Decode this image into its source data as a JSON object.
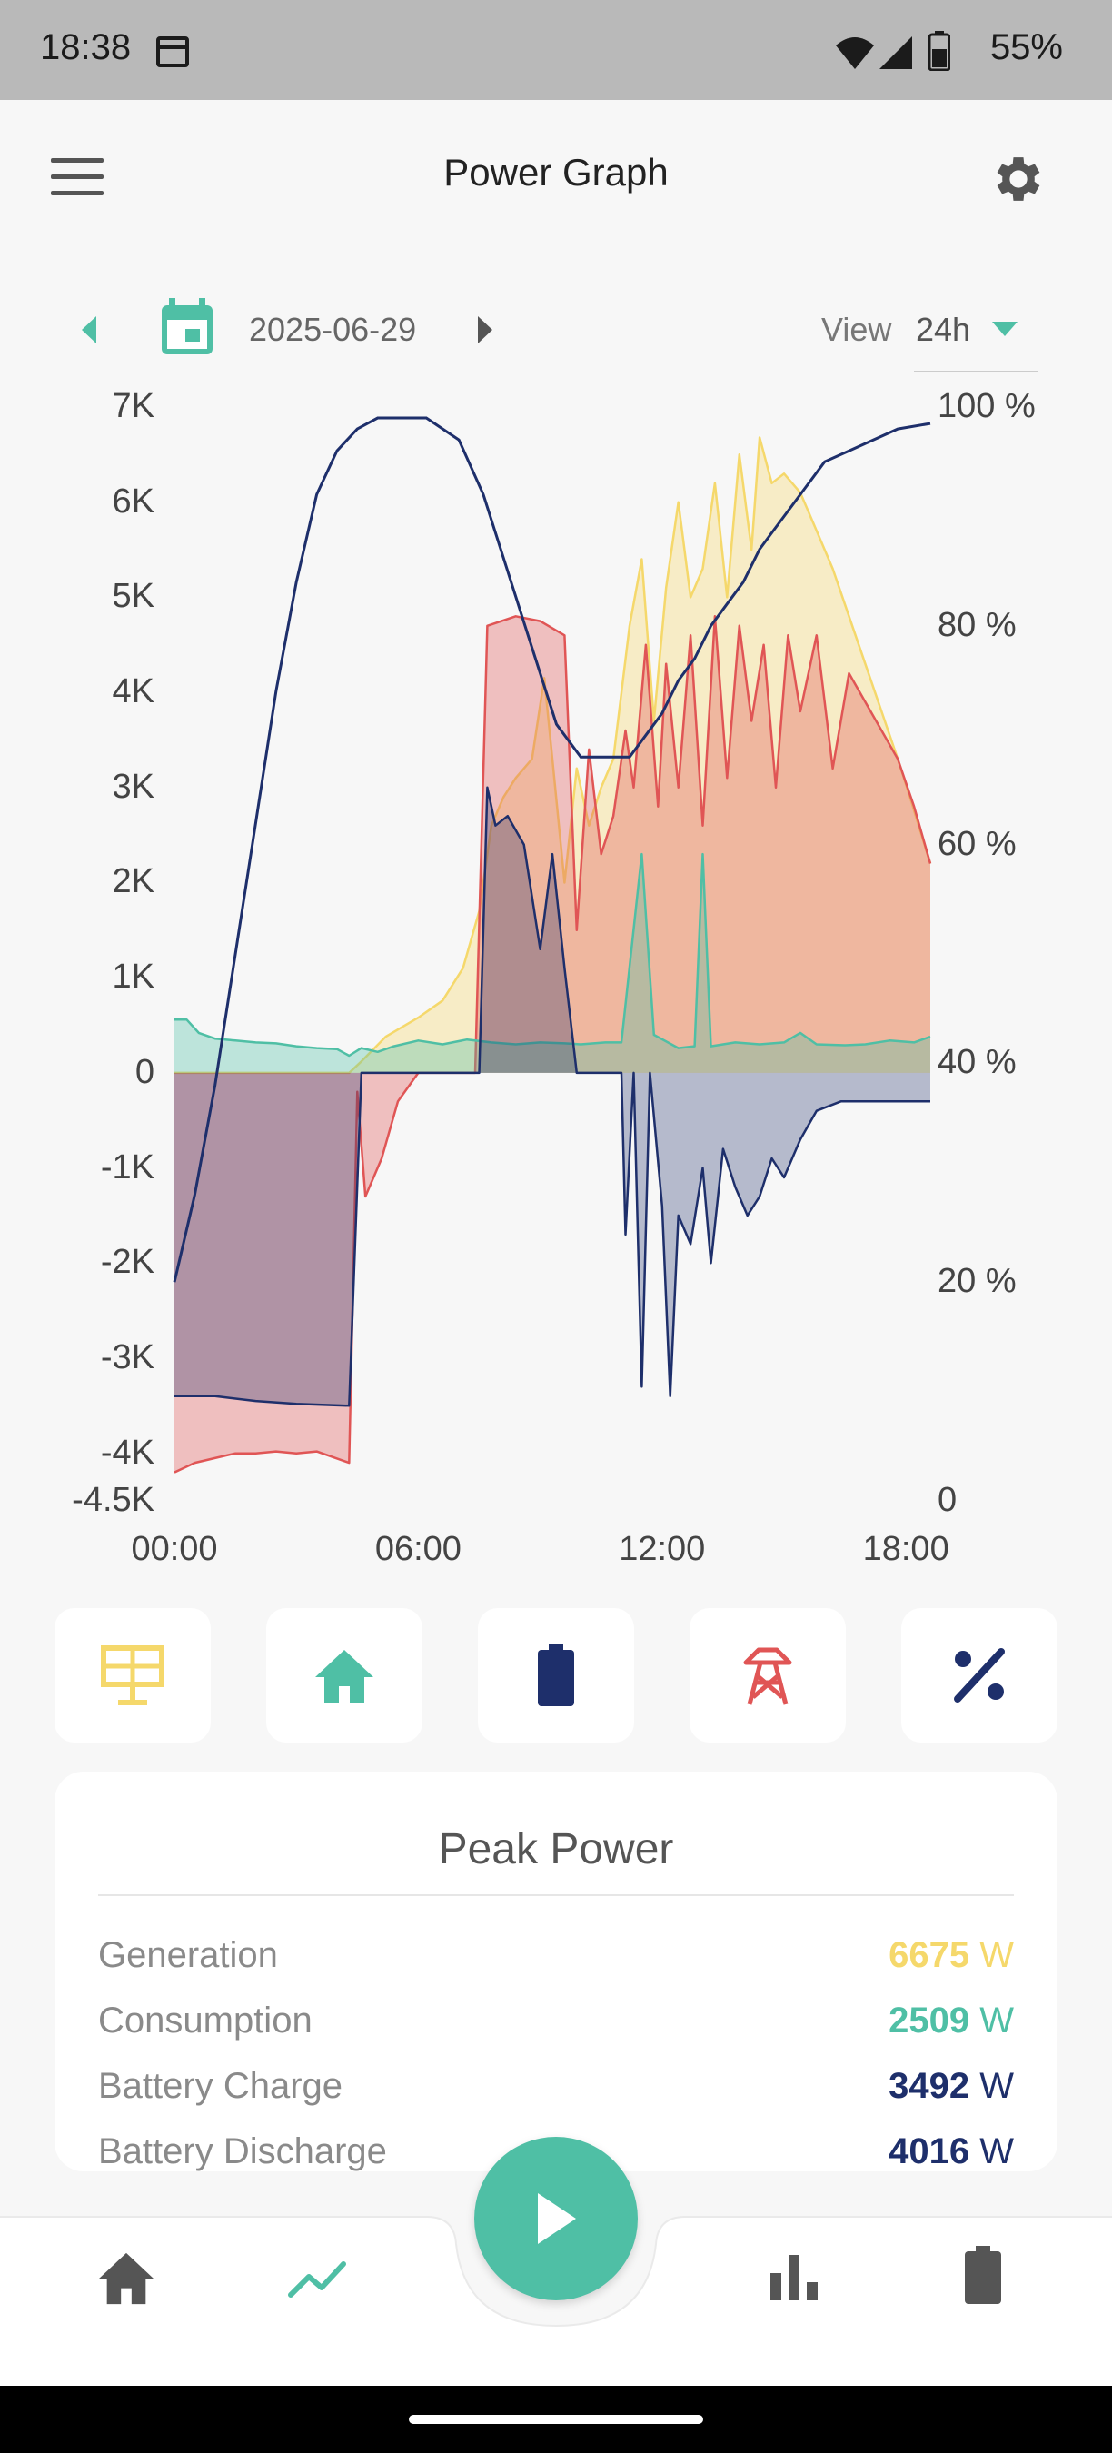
{
  "status_bar": {
    "time": "18:38",
    "battery_pct": "55%"
  },
  "app_bar": {
    "title": "Power Graph"
  },
  "date_nav": {
    "date": "2025-06-29",
    "view_label": "View",
    "view_value": "24h"
  },
  "chart_data": {
    "type": "area",
    "x_tick_labels": [
      "00:00",
      "06:00",
      "12:00",
      "18:00"
    ],
    "y_left_tick_labels": [
      "7K",
      "6K",
      "5K",
      "4K",
      "3K",
      "2K",
      "1K",
      "0",
      "-1K",
      "-2K",
      "-3K",
      "-4K",
      "-4.5K"
    ],
    "y_right_tick_labels": [
      "100 %",
      "80 %",
      "60 %",
      "40 %",
      "20 %",
      "0"
    ],
    "y_left_range": [
      -4500,
      7000
    ],
    "y_right_range": [
      0,
      100
    ],
    "x_range_hours": [
      0,
      18.6
    ],
    "colors": {
      "generation": "#f5d86b",
      "consumption": "#4fbfa5",
      "battery": "#1e2f6b",
      "grid": "#e05555",
      "soc": "#1e2f6b"
    },
    "series": [
      {
        "key": "generation",
        "points": [
          [
            0,
            0
          ],
          [
            4.3,
            0
          ],
          [
            4.6,
            120
          ],
          [
            5.2,
            380
          ],
          [
            6,
            580
          ],
          [
            6.6,
            760
          ],
          [
            7.1,
            1100
          ],
          [
            7.5,
            1700
          ],
          [
            7.8,
            2600
          ],
          [
            8.1,
            2900
          ],
          [
            8.4,
            3100
          ],
          [
            8.8,
            3300
          ],
          [
            9.1,
            4150
          ],
          [
            9.3,
            3300
          ],
          [
            9.6,
            2000
          ],
          [
            9.9,
            3200
          ],
          [
            10.2,
            2600
          ],
          [
            10.5,
            3000
          ],
          [
            10.8,
            3300
          ],
          [
            11.2,
            4700
          ],
          [
            11.5,
            5400
          ],
          [
            11.8,
            3700
          ],
          [
            12.1,
            5100
          ],
          [
            12.4,
            6000
          ],
          [
            12.7,
            5000
          ],
          [
            13,
            5300
          ],
          [
            13.3,
            6200
          ],
          [
            13.6,
            5000
          ],
          [
            13.9,
            6500
          ],
          [
            14.2,
            5500
          ],
          [
            14.4,
            6680
          ],
          [
            14.7,
            6200
          ],
          [
            15,
            6300
          ],
          [
            15.4,
            6100
          ],
          [
            15.8,
            5700
          ],
          [
            16.2,
            5300
          ],
          [
            16.6,
            4800
          ],
          [
            17,
            4300
          ],
          [
            17.4,
            3800
          ],
          [
            17.8,
            3300
          ],
          [
            18.1,
            2900
          ],
          [
            18.6,
            2200
          ]
        ]
      },
      {
        "key": "consumption",
        "points": [
          [
            0,
            560
          ],
          [
            0.3,
            560
          ],
          [
            0.6,
            420
          ],
          [
            1,
            360
          ],
          [
            1.5,
            340
          ],
          [
            2,
            320
          ],
          [
            2.5,
            310
          ],
          [
            3,
            280
          ],
          [
            3.5,
            260
          ],
          [
            4,
            250
          ],
          [
            4.3,
            180
          ],
          [
            4.6,
            260
          ],
          [
            5,
            220
          ],
          [
            5.4,
            280
          ],
          [
            6,
            340
          ],
          [
            6.6,
            300
          ],
          [
            7.2,
            350
          ],
          [
            7.8,
            320
          ],
          [
            8.4,
            300
          ],
          [
            9,
            320
          ],
          [
            9.6,
            310
          ],
          [
            10,
            300
          ],
          [
            10.6,
            320
          ],
          [
            11,
            320
          ],
          [
            11.5,
            2300
          ],
          [
            11.8,
            400
          ],
          [
            12.4,
            260
          ],
          [
            12.8,
            280
          ],
          [
            13,
            2300
          ],
          [
            13.2,
            280
          ],
          [
            13.8,
            320
          ],
          [
            14.4,
            300
          ],
          [
            15,
            320
          ],
          [
            15.4,
            420
          ],
          [
            15.8,
            300
          ],
          [
            16.5,
            290
          ],
          [
            17,
            300
          ],
          [
            17.6,
            340
          ],
          [
            18.2,
            320
          ],
          [
            18.6,
            380
          ]
        ]
      },
      {
        "key": "battery",
        "points": [
          [
            0,
            -3400
          ],
          [
            1,
            -3400
          ],
          [
            2,
            -3450
          ],
          [
            3,
            -3480
          ],
          [
            4.3,
            -3500
          ],
          [
            4.6,
            0
          ],
          [
            7.5,
            0
          ],
          [
            7.7,
            3000
          ],
          [
            7.9,
            2600
          ],
          [
            8.2,
            2700
          ],
          [
            8.6,
            2400
          ],
          [
            9,
            1300
          ],
          [
            9.3,
            2300
          ],
          [
            9.6,
            1100
          ],
          [
            9.9,
            0
          ],
          [
            11,
            0
          ],
          [
            11.1,
            -1700
          ],
          [
            11.3,
            0
          ],
          [
            11.5,
            -3300
          ],
          [
            11.7,
            0
          ],
          [
            12,
            -1400
          ],
          [
            12.2,
            -3400
          ],
          [
            12.4,
            -1500
          ],
          [
            12.7,
            -1800
          ],
          [
            13,
            -1000
          ],
          [
            13.2,
            -2000
          ],
          [
            13.5,
            -800
          ],
          [
            13.8,
            -1200
          ],
          [
            14.1,
            -1500
          ],
          [
            14.4,
            -1300
          ],
          [
            14.7,
            -900
          ],
          [
            15,
            -1100
          ],
          [
            15.4,
            -700
          ],
          [
            15.8,
            -400
          ],
          [
            16.4,
            -300
          ],
          [
            17.4,
            -300
          ],
          [
            18.6,
            -300
          ]
        ]
      },
      {
        "key": "grid",
        "points": [
          [
            0,
            -4200
          ],
          [
            0.5,
            -4100
          ],
          [
            1,
            -4050
          ],
          [
            1.5,
            -4000
          ],
          [
            2,
            -4000
          ],
          [
            2.5,
            -3980
          ],
          [
            3,
            -4000
          ],
          [
            3.5,
            -3980
          ],
          [
            4.3,
            -4100
          ],
          [
            4.5,
            -200
          ],
          [
            4.7,
            -1300
          ],
          [
            5.1,
            -900
          ],
          [
            5.5,
            -300
          ],
          [
            6,
            0
          ],
          [
            7.4,
            0
          ],
          [
            7.7,
            4700
          ],
          [
            8.4,
            4800
          ],
          [
            9,
            4750
          ],
          [
            9.6,
            4600
          ],
          [
            9.9,
            1500
          ],
          [
            10.2,
            3400
          ],
          [
            10.5,
            2300
          ],
          [
            10.8,
            2700
          ],
          [
            11.1,
            3600
          ],
          [
            11.3,
            3000
          ],
          [
            11.6,
            4500
          ],
          [
            11.9,
            2800
          ],
          [
            12.1,
            4300
          ],
          [
            12.4,
            3000
          ],
          [
            12.7,
            4600
          ],
          [
            13,
            2600
          ],
          [
            13.3,
            4800
          ],
          [
            13.6,
            3100
          ],
          [
            13.9,
            4700
          ],
          [
            14.2,
            3700
          ],
          [
            14.5,
            4500
          ],
          [
            14.8,
            3000
          ],
          [
            15.1,
            4600
          ],
          [
            15.4,
            3800
          ],
          [
            15.8,
            4600
          ],
          [
            16.2,
            3200
          ],
          [
            16.6,
            4200
          ],
          [
            17,
            3900
          ],
          [
            17.4,
            3600
          ],
          [
            17.8,
            3300
          ],
          [
            18.2,
            2800
          ],
          [
            18.6,
            2200
          ]
        ]
      },
      {
        "key": "soc",
        "points": [
          [
            0,
            20
          ],
          [
            0.5,
            28
          ],
          [
            1,
            38
          ],
          [
            1.5,
            50
          ],
          [
            2,
            62
          ],
          [
            2.5,
            74
          ],
          [
            3,
            84
          ],
          [
            3.5,
            92
          ],
          [
            4,
            96
          ],
          [
            4.5,
            98
          ],
          [
            5,
            99
          ],
          [
            5.6,
            99
          ],
          [
            6.2,
            99
          ],
          [
            7,
            97
          ],
          [
            7.6,
            92
          ],
          [
            8.2,
            85
          ],
          [
            8.8,
            78
          ],
          [
            9.4,
            71
          ],
          [
            10,
            68
          ],
          [
            10.6,
            68
          ],
          [
            11.2,
            68
          ],
          [
            11.6,
            70
          ],
          [
            12,
            72
          ],
          [
            12.4,
            75
          ],
          [
            12.8,
            77
          ],
          [
            13.2,
            80
          ],
          [
            13.6,
            82
          ],
          [
            14,
            84
          ],
          [
            14.4,
            87
          ],
          [
            14.8,
            89
          ],
          [
            15.2,
            91
          ],
          [
            15.6,
            93
          ],
          [
            16,
            95
          ],
          [
            16.6,
            96
          ],
          [
            17.2,
            97
          ],
          [
            17.8,
            98
          ],
          [
            18.6,
            98.5
          ]
        ]
      }
    ]
  },
  "filters": [
    {
      "name": "solar-filter-button",
      "icon": "solar-panel-icon",
      "color": "#f5d86b"
    },
    {
      "name": "home-filter-button",
      "icon": "home-icon",
      "color": "#4fbfa5"
    },
    {
      "name": "battery-filter-button",
      "icon": "battery-icon",
      "color": "#1e2f6b"
    },
    {
      "name": "grid-filter-button",
      "icon": "power-tower-icon",
      "color": "#e05555"
    },
    {
      "name": "percent-filter-button",
      "icon": "percent-icon",
      "color": "#1e2f6b"
    }
  ],
  "peak_power": {
    "title": "Peak Power",
    "rows": [
      {
        "label": "Generation",
        "value": "6675",
        "unit": "W",
        "color": "#f5d86b"
      },
      {
        "label": "Consumption",
        "value": "2509",
        "unit": "W",
        "color": "#4fbfa5"
      },
      {
        "label": "Battery Charge",
        "value": "3492",
        "unit": "W",
        "color": "#1e2f6b"
      },
      {
        "label": "Battery Discharge",
        "value": "4016",
        "unit": "W",
        "color": "#1e2f6b"
      }
    ]
  },
  "bottom_nav": {
    "items": [
      {
        "name": "nav-home",
        "icon": "home-icon"
      },
      {
        "name": "nav-power-graph",
        "icon": "line-chart-icon"
      },
      {
        "name": "nav-statistics",
        "icon": "bar-chart-icon"
      },
      {
        "name": "nav-battery",
        "icon": "battery-icon"
      }
    ],
    "fab_icon": "play-icon"
  }
}
